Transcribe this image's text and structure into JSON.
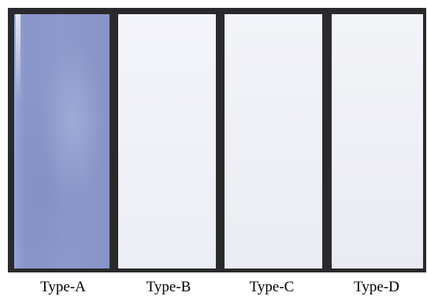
{
  "samples": [
    {
      "id": "a",
      "label": "Type-A",
      "color": "#8e99cc"
    },
    {
      "id": "b",
      "label": "Type-B",
      "color": "#f0f1f7"
    },
    {
      "id": "c",
      "label": "Type-C",
      "color": "#eff0f6"
    },
    {
      "id": "d",
      "label": "Type-D",
      "color": "#eeeff5"
    }
  ],
  "frame_color": "#2a2a2c"
}
